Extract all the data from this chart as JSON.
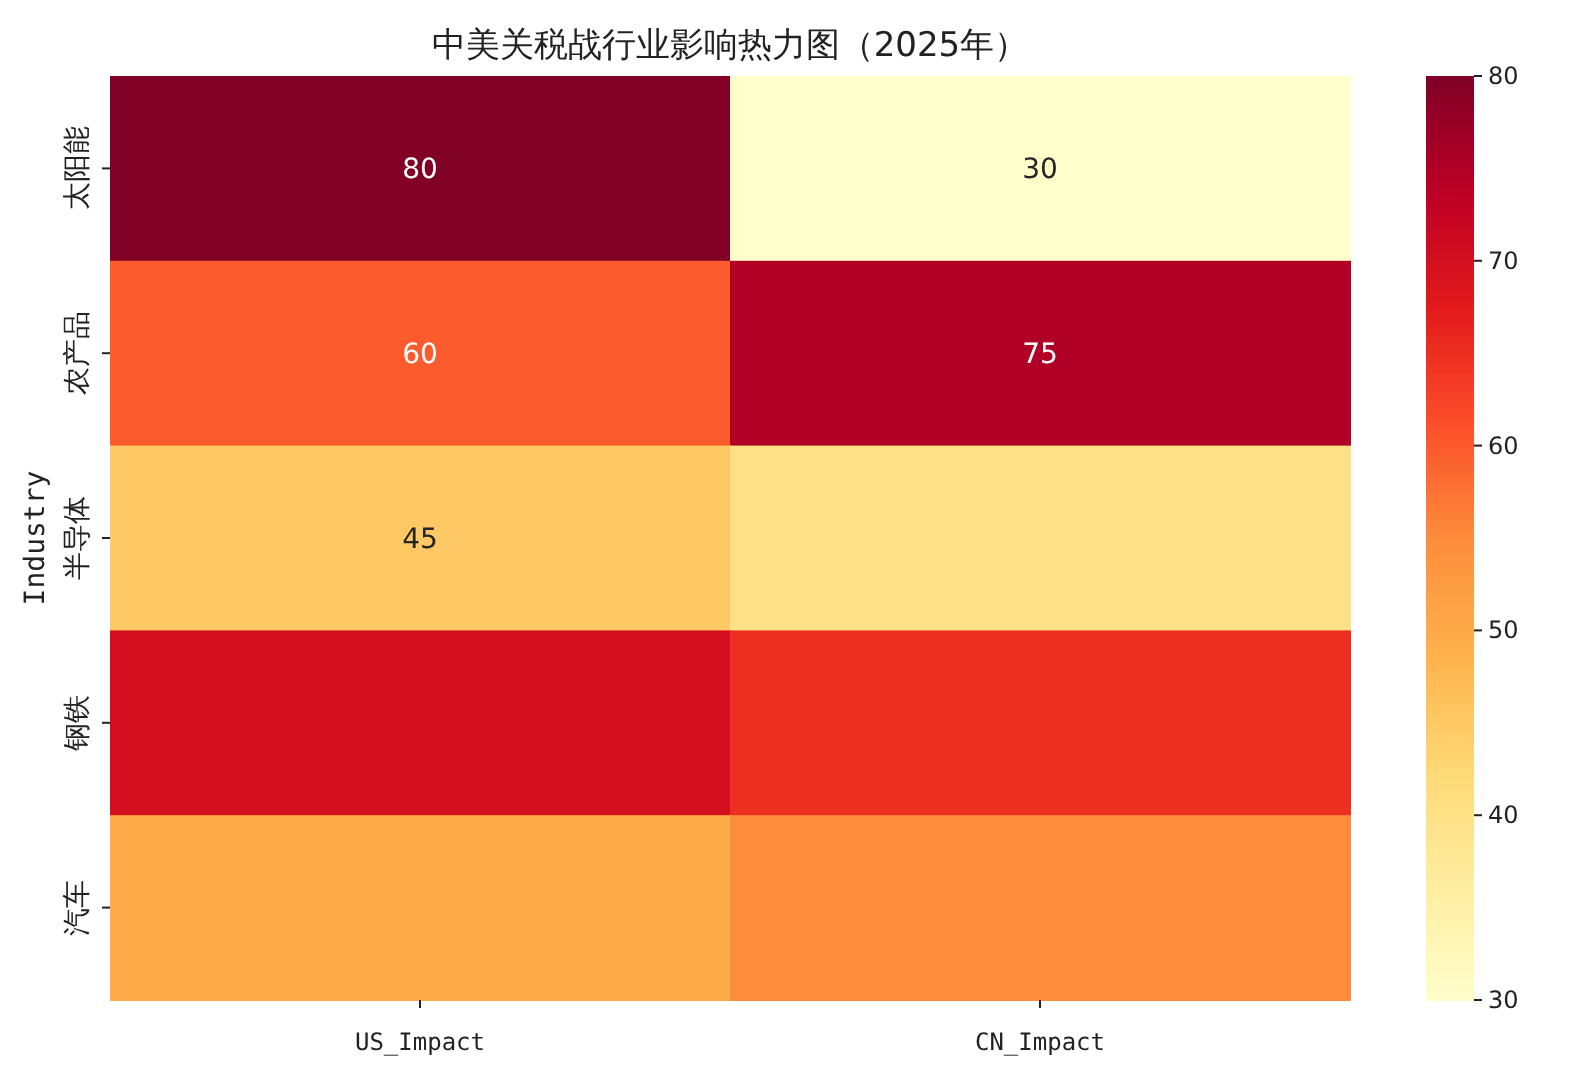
{
  "chart_data": {
    "type": "heatmap",
    "title": "中美关税战行业影响热力图（2025年）",
    "ylabel": "Industry",
    "categories": [
      "US_Impact",
      "CN_Impact"
    ],
    "y_categories": [
      "太阳能",
      "农产品",
      "半导体",
      "钢铁",
      "汽车"
    ],
    "cells": [
      [
        80,
        30
      ],
      [
        60,
        75
      ],
      [
        45,
        40
      ],
      [
        70,
        65
      ],
      [
        50,
        55
      ]
    ],
    "cell_labels": [
      [
        "80",
        "30"
      ],
      [
        "60",
        "75"
      ],
      [
        "45",
        null
      ],
      [
        null,
        null
      ],
      [
        null,
        null
      ]
    ],
    "clim": [
      30,
      80
    ],
    "cticks": [
      30,
      40,
      50,
      60,
      70,
      80
    ]
  }
}
